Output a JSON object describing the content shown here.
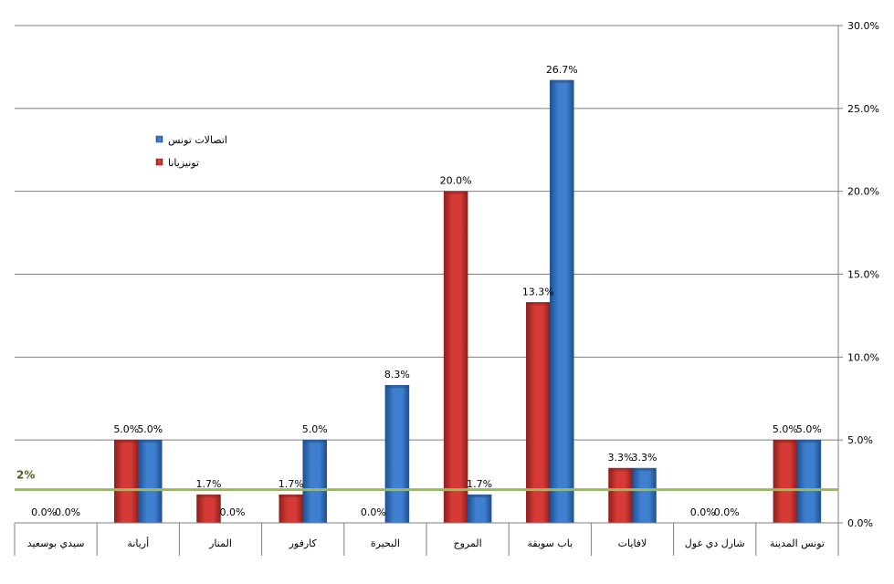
{
  "chart_data": {
    "type": "bar",
    "categories": [
      "سيدي بوسعيد",
      "أريانة",
      "المنار",
      "كارفور",
      "البحيرة",
      "المروج",
      "باب سويقة",
      "لافايات",
      "شارل دي غول",
      "تونس المدينة"
    ],
    "series": [
      {
        "name": "اتصالات تونس",
        "color": "#3f7fcf",
        "dark": "#1f4f8f",
        "values": [
          0.0,
          5.0,
          0.0,
          5.0,
          8.3,
          1.7,
          26.7,
          3.3,
          0.0,
          5.0
        ],
        "labels": [
          "0.0%",
          "5.0%",
          "0.0%",
          "5.0%",
          "8.3%",
          "1.7%",
          "26.7%",
          "3.3%",
          "0.0%",
          "5.0%"
        ]
      },
      {
        "name": "تونيزيانا",
        "color": "#d63a36",
        "dark": "#8f1f1c",
        "values": [
          0.0,
          5.0,
          1.7,
          1.7,
          0.0,
          20.0,
          13.3,
          3.3,
          0.0,
          5.0
        ],
        "labels": [
          "0.0%",
          "5.0%",
          "1.7%",
          "1.7%",
          "0.0%",
          "20.0%",
          "13.3%",
          "3.3%",
          "0.0%",
          "5.0%"
        ]
      }
    ],
    "ylim": [
      0,
      30
    ],
    "yticks": [
      0,
      5,
      10,
      15,
      20,
      25,
      30
    ],
    "ytick_labels": [
      "0.0%",
      "5.0%",
      "10.0%",
      "15.0%",
      "20.0%",
      "25.0%",
      "30.0%"
    ],
    "y_axis_side": "right",
    "grid": true,
    "legend_position": "top-left",
    "reference_line": {
      "value": 2,
      "label": "2%",
      "color": "#9bbb59"
    }
  }
}
